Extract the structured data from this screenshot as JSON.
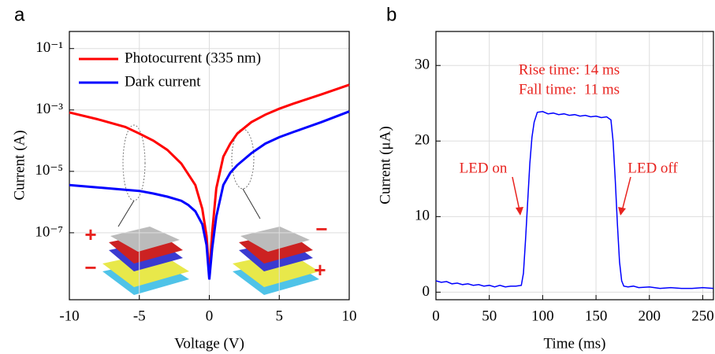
{
  "chart_data": [
    {
      "type": "line",
      "panel_label": "a",
      "x_label": "Voltage (V)",
      "y_label": "Current (A)",
      "log_y": true,
      "grid": true,
      "legend": "upper left",
      "xlim": [
        -10,
        10
      ],
      "xticks": [
        -10,
        -5,
        0,
        5,
        10
      ],
      "ylim": [
        6.6e-10,
        0.36
      ],
      "yticks": [
        {
          "value": 0.1,
          "label": "10⁻¹"
        },
        {
          "value": 0.001,
          "label": "10⁻³"
        },
        {
          "value": 1e-05,
          "label": "10⁻⁵"
        },
        {
          "value": 1e-07,
          "label": "10⁻⁷"
        }
      ],
      "x": [
        -10,
        -8,
        -6,
        -5,
        -4,
        -3,
        -2,
        -1.5,
        -1,
        -0.5,
        -0.2,
        0,
        0.2,
        0.5,
        1,
        1.5,
        2,
        3,
        4,
        5,
        6,
        8,
        10
      ],
      "series": [
        {
          "name": "Photocurrent (335 nm)",
          "color": "#ff0000",
          "values": [
            0.00083,
            0.0005,
            0.00028,
            0.00017,
            0.0001,
            5e-05,
            1.8e-05,
            8e-06,
            3.6e-06,
            6e-07,
            8e-08,
            4e-09,
            1e-07,
            2.8e-06,
            3e-05,
            8e-05,
            0.00017,
            0.0004,
            0.0007,
            0.0011,
            0.0016,
            0.0032,
            0.0066
          ]
        },
        {
          "name": "Dark current",
          "color": "#0000ff",
          "values": [
            3.6e-06,
            3e-06,
            2.5e-06,
            2.3e-06,
            1.9e-06,
            1.5e-06,
            1.1e-06,
            8e-07,
            5e-07,
            1.9e-07,
            4e-08,
            3e-09,
            3e-08,
            3.4e-07,
            3.6e-06,
            9e-06,
            1.6e-05,
            3.9e-05,
            8e-05,
            0.00013,
            0.00019,
            0.0004,
            0.00089
          ]
        }
      ],
      "annotations": [
        "+",
        "−",
        "−",
        "+"
      ]
    },
    {
      "type": "line",
      "panel_label": "b",
      "x_label": "Time (ms)",
      "y_label": "Current (μA)",
      "grid": true,
      "color": "#0000ff",
      "xlim": [
        0,
        260
      ],
      "xticks": [
        0,
        50,
        100,
        150,
        200,
        250
      ],
      "ylim": [
        -1,
        34.5
      ],
      "yticks": [
        0,
        10,
        20,
        30
      ],
      "x": [
        0,
        5,
        10,
        15,
        20,
        25,
        30,
        35,
        40,
        45,
        50,
        55,
        60,
        65,
        70,
        75,
        80,
        82,
        84,
        86,
        88,
        90,
        92,
        95,
        100,
        105,
        110,
        115,
        120,
        125,
        130,
        135,
        140,
        145,
        150,
        155,
        160,
        164,
        166,
        168,
        170,
        172,
        174,
        176,
        180,
        185,
        190,
        200,
        210,
        220,
        230,
        240,
        250,
        260
      ],
      "values": [
        1.5,
        1.3,
        1.4,
        1.1,
        1.2,
        1.0,
        1.1,
        0.9,
        1.0,
        0.8,
        0.9,
        0.7,
        0.9,
        0.7,
        0.8,
        0.8,
        0.9,
        2.5,
        7,
        12,
        17,
        20.5,
        22.5,
        23.8,
        23.9,
        23.6,
        23.7,
        23.5,
        23.6,
        23.4,
        23.5,
        23.3,
        23.4,
        23.2,
        23.3,
        23.1,
        23.2,
        22.8,
        20,
        15,
        9,
        4,
        1.5,
        0.8,
        0.7,
        0.8,
        0.6,
        0.7,
        0.5,
        0.6,
        0.5,
        0.5,
        0.6,
        0.5
      ],
      "annotations": [
        "Rise time: 14 ms",
        "Fall time:  11 ms",
        "LED on",
        "LED off"
      ]
    }
  ]
}
